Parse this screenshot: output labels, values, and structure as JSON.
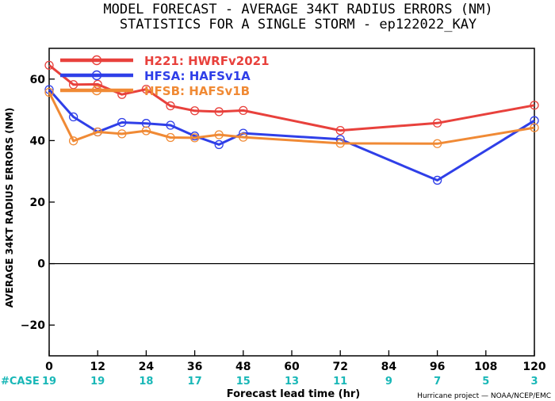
{
  "chart_data": {
    "type": "line",
    "title": "MODEL FORECAST - AVERAGE 34KT RADIUS ERRORS (NM)",
    "subtitle": "STATISTICS FOR A SINGLE STORM - ep122022_KAY",
    "xlabel": "Forecast lead time (hr)",
    "ylabel": "AVERAGE 34KT RADIUS ERRORS (NM)",
    "xlim": [
      0,
      120
    ],
    "ylim": [
      -30,
      70
    ],
    "x_ticks": [
      0,
      12,
      24,
      36,
      48,
      60,
      72,
      84,
      96,
      108,
      120
    ],
    "y_ticks": [
      -20,
      0,
      20,
      40,
      60
    ],
    "x_tick_labels": [
      "0",
      "12",
      "24",
      "36",
      "48",
      "60",
      "72",
      "84",
      "96",
      "108",
      "120"
    ],
    "y_tick_labels": [
      "−20",
      "0",
      "20",
      "40",
      "60"
    ],
    "zero_line": true,
    "grid": false,
    "legend_position": "top-left",
    "case_label": "#CASE",
    "case_counts": [
      {
        "x": 0,
        "n": "19"
      },
      {
        "x": 12,
        "n": "19"
      },
      {
        "x": 24,
        "n": "18"
      },
      {
        "x": 36,
        "n": "17"
      },
      {
        "x": 48,
        "n": "15"
      },
      {
        "x": 60,
        "n": "13"
      },
      {
        "x": 72,
        "n": "11"
      },
      {
        "x": 84,
        "n": "9"
      },
      {
        "x": 96,
        "n": "7"
      },
      {
        "x": 108,
        "n": "5"
      },
      {
        "x": 120,
        "n": "3"
      }
    ],
    "credit": "Hurricane project — NOAA/NCEP/EMC",
    "series": [
      {
        "name": "H221: HWRFv2021",
        "color": "#e8413c",
        "points": [
          [
            0,
            64.5
          ],
          [
            6,
            58.2
          ],
          [
            12,
            58.3
          ],
          [
            18,
            55.0
          ],
          [
            24,
            56.7
          ],
          [
            30,
            51.3
          ],
          [
            36,
            49.7
          ],
          [
            42,
            49.4
          ],
          [
            48,
            49.8
          ],
          [
            72,
            43.3
          ],
          [
            96,
            45.7
          ],
          [
            120,
            51.5
          ]
        ]
      },
      {
        "name": "HFSA: HAFSv1A",
        "color": "#2f3fe8",
        "points": [
          [
            0,
            56.6
          ],
          [
            6,
            47.7
          ],
          [
            12,
            42.8
          ],
          [
            18,
            45.9
          ],
          [
            24,
            45.6
          ],
          [
            30,
            45.0
          ],
          [
            36,
            41.5
          ],
          [
            42,
            38.7
          ],
          [
            48,
            42.4
          ],
          [
            72,
            40.4
          ],
          [
            96,
            27.1
          ],
          [
            120,
            46.5
          ]
        ]
      },
      {
        "name": "HFSB: HAFSv1B",
        "color": "#f08a35",
        "points": [
          [
            0,
            55.7
          ],
          [
            6,
            39.9
          ],
          [
            12,
            42.8
          ],
          [
            18,
            42.2
          ],
          [
            24,
            43.2
          ],
          [
            30,
            41.0
          ],
          [
            36,
            40.9
          ],
          [
            42,
            41.9
          ],
          [
            48,
            41.1
          ],
          [
            72,
            39.1
          ],
          [
            96,
            39.0
          ],
          [
            120,
            44.2
          ]
        ]
      }
    ]
  }
}
